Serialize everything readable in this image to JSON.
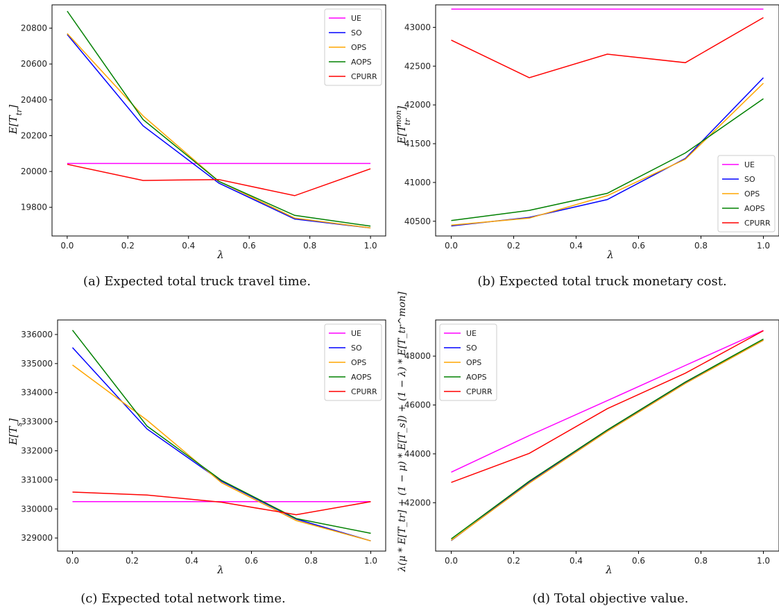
{
  "colors": {
    "UE": "#ff00ff",
    "SO": "#0000ff",
    "OPS": "#ffa500",
    "AOPS": "#008000",
    "CPURR": "#ff0000"
  },
  "chart_data": [
    {
      "type": "line",
      "caption": "(a) Expected total truck travel time.",
      "xlabel": "λ",
      "ylabel": "E[T_tr]",
      "x": [
        0.0,
        0.25,
        0.5,
        0.75,
        1.0
      ],
      "xlim": [
        -0.05,
        1.05
      ],
      "ylim": [
        19640,
        20930
      ],
      "xticks": [
        0.0,
        0.2,
        0.4,
        0.6,
        0.8,
        1.0
      ],
      "yticks": [
        19800,
        20000,
        20200,
        20400,
        20600,
        20800
      ],
      "legend": "top-right",
      "series": [
        {
          "name": "UE",
          "values": [
            20045,
            20045,
            20045,
            20045,
            20045
          ]
        },
        {
          "name": "SO",
          "values": [
            20765,
            20255,
            19935,
            19735,
            19685
          ]
        },
        {
          "name": "OPS",
          "values": [
            20770,
            20310,
            19945,
            19740,
            19685
          ]
        },
        {
          "name": "AOPS",
          "values": [
            20895,
            20290,
            19945,
            19755,
            19695
          ]
        },
        {
          "name": "CPURR",
          "values": [
            20040,
            19950,
            19955,
            19865,
            20015
          ]
        }
      ]
    },
    {
      "type": "line",
      "caption": "(b) Expected total truck monetary cost.",
      "xlabel": "λ",
      "ylabel": "E[T_tr^mon]",
      "x": [
        0.0,
        0.25,
        0.5,
        0.75,
        1.0
      ],
      "xlim": [
        -0.05,
        1.05
      ],
      "ylim": [
        40310,
        43290
      ],
      "xticks": [
        0.0,
        0.2,
        0.4,
        0.6,
        0.8,
        1.0
      ],
      "yticks": [
        40500,
        41000,
        41500,
        42000,
        42500,
        43000
      ],
      "legend": "bottom-right",
      "series": [
        {
          "name": "UE",
          "values": [
            43235,
            43235,
            43235,
            43235,
            43235
          ]
        },
        {
          "name": "SO",
          "values": [
            40440,
            40550,
            40780,
            41310,
            42350
          ]
        },
        {
          "name": "OPS",
          "values": [
            40450,
            40540,
            40830,
            41300,
            42280
          ]
        },
        {
          "name": "AOPS",
          "values": [
            40510,
            40640,
            40860,
            41380,
            42080
          ]
        },
        {
          "name": "CPURR",
          "values": [
            42835,
            42350,
            42655,
            42545,
            43125
          ]
        }
      ]
    },
    {
      "type": "line",
      "caption": "(c) Expected total network time.",
      "xlabel": "λ",
      "ylabel": "E[T_s]",
      "x": [
        0.0,
        0.25,
        0.5,
        0.75,
        1.0
      ],
      "xlim": [
        -0.05,
        1.05
      ],
      "ylim": [
        328550,
        336500
      ],
      "xticks": [
        0.0,
        0.2,
        0.4,
        0.6,
        0.8,
        1.0
      ],
      "yticks": [
        329000,
        330000,
        331000,
        332000,
        333000,
        334000,
        335000,
        336000
      ],
      "legend": "top-right",
      "series": [
        {
          "name": "UE",
          "values": [
            330250,
            330250,
            330250,
            330250,
            330250
          ]
        },
        {
          "name": "SO",
          "values": [
            335550,
            332750,
            330950,
            329650,
            328900
          ]
        },
        {
          "name": "OPS",
          "values": [
            334950,
            333050,
            330900,
            329600,
            328900
          ]
        },
        {
          "name": "AOPS",
          "values": [
            336150,
            332850,
            330980,
            329670,
            329160
          ]
        },
        {
          "name": "CPURR",
          "values": [
            330580,
            330480,
            330230,
            329800,
            330250
          ]
        }
      ]
    },
    {
      "type": "line",
      "caption": "(d) Total objective value.",
      "xlabel": "λ",
      "ylabel": "λ(μ * E[T_tr] + (1 − μ) * E[T_s]) + (1 − λ) * E[T_tr^mon]",
      "x": [
        0.0,
        0.25,
        0.5,
        0.75,
        1.0
      ],
      "xlim": [
        -0.05,
        1.05
      ],
      "ylim": [
        40020,
        49480
      ],
      "xticks": [
        0.0,
        0.2,
        0.4,
        0.6,
        0.8,
        1.0
      ],
      "yticks": [
        42000,
        44000,
        46000,
        48000
      ],
      "legend": "top-left",
      "series": [
        {
          "name": "UE",
          "values": [
            43250,
            44750,
            46180,
            47620,
            49050
          ]
        },
        {
          "name": "SO",
          "values": [
            40450,
            42850,
            44950,
            46900,
            48650
          ]
        },
        {
          "name": "OPS",
          "values": [
            40460,
            42800,
            44920,
            46880,
            48650
          ]
        },
        {
          "name": "AOPS",
          "values": [
            40520,
            42880,
            44980,
            46940,
            48700
          ]
        },
        {
          "name": "CPURR",
          "values": [
            42830,
            44020,
            45850,
            47300,
            49040
          ]
        }
      ]
    }
  ]
}
